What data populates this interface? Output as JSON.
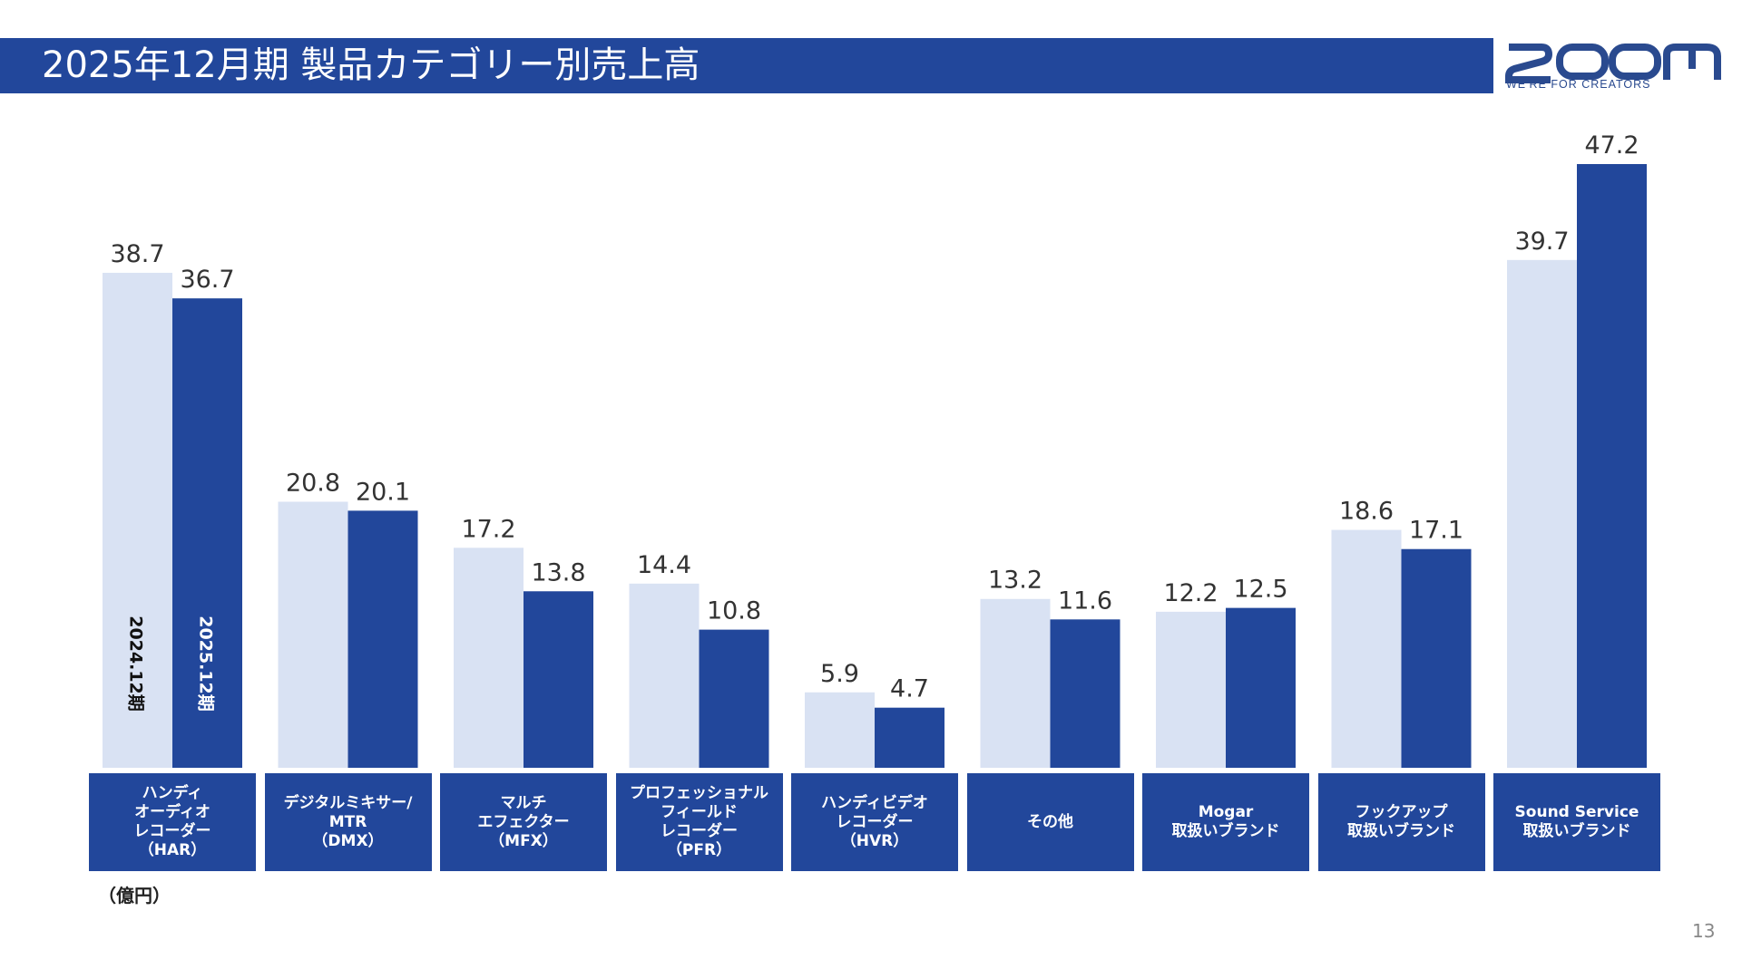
{
  "header": {
    "title": "2025年12月期 製品カテゴリー別売上高"
  },
  "logo": {
    "text": "ZOOM",
    "tagline": "WE'RE FOR CREATORS"
  },
  "colors": {
    "prev": "#d9e2f3",
    "curr": "#22479b",
    "header": "#22479b"
  },
  "chart_data": {
    "type": "bar",
    "unit": "（億円）",
    "categories": [
      "ハンディ\nオーディオ\nレコーダー\n（HAR）",
      "デジタルミキサー/\nMTR\n（DMX）",
      "マルチ\nエフェクター\n（MFX）",
      "プロフェッショナル\nフィールド\nレコーダー\n（PFR）",
      "ハンディビデオ\nレコーダー\n（HVR）",
      "その他",
      "Mogar\n取扱いブランド",
      "フックアップ\n取扱いブランド",
      "Sound Service\n取扱いブランド"
    ],
    "series": [
      {
        "name": "2024.12期",
        "values": [
          38.7,
          20.8,
          17.2,
          14.4,
          5.9,
          13.2,
          12.2,
          18.6,
          39.7
        ]
      },
      {
        "name": "2025.12期",
        "values": [
          36.7,
          20.1,
          13.8,
          10.8,
          4.7,
          11.6,
          12.5,
          17.1,
          47.2
        ]
      }
    ],
    "ylim": [
      0,
      47.2
    ],
    "grid": false
  },
  "footer": {
    "page": "13"
  }
}
